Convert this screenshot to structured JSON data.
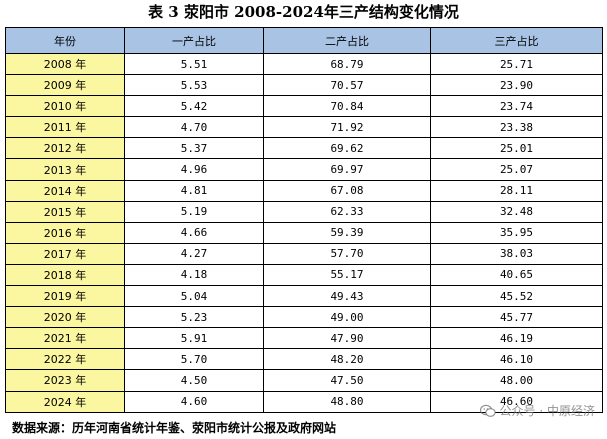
{
  "title": "表 3 荥阳市 2008-2024年三产结构变化情况",
  "table": {
    "headers": [
      "年份",
      "一产占比",
      "二产占比",
      "三产占比"
    ],
    "rows": [
      [
        "2008 年",
        "5.51",
        "68.79",
        "25.71"
      ],
      [
        "2009 年",
        "5.53",
        "70.57",
        "23.90"
      ],
      [
        "2010 年",
        "5.42",
        "70.84",
        "23.74"
      ],
      [
        "2011 年",
        "4.70",
        "71.92",
        "23.38"
      ],
      [
        "2012 年",
        "5.37",
        "69.62",
        "25.01"
      ],
      [
        "2013 年",
        "4.96",
        "69.97",
        "25.07"
      ],
      [
        "2014 年",
        "4.81",
        "67.08",
        "28.11"
      ],
      [
        "2015 年",
        "5.19",
        "62.33",
        "32.48"
      ],
      [
        "2016 年",
        "4.66",
        "59.39",
        "35.95"
      ],
      [
        "2017 年",
        "4.27",
        "57.70",
        "38.03"
      ],
      [
        "2018 年",
        "4.18",
        "55.17",
        "40.65"
      ],
      [
        "2019 年",
        "5.04",
        "49.43",
        "45.52"
      ],
      [
        "2020 年",
        "5.23",
        "49.00",
        "45.77"
      ],
      [
        "2021 年",
        "5.91",
        "47.90",
        "46.19"
      ],
      [
        "2022 年",
        "5.70",
        "48.20",
        "46.10"
      ],
      [
        "2023 年",
        "4.50",
        "47.50",
        "48.00"
      ],
      [
        "2024 年",
        "4.60",
        "48.80",
        "46.60"
      ]
    ]
  },
  "footer": "数据来源：历年河南省统计年鉴、荥阳市统计公报及政府网站",
  "watermark": "公众号 · 中原经济",
  "icons": {
    "watermark_icon": "wechat-icon"
  },
  "colors": {
    "header_bg": "#a9c3e5",
    "year_bg": "#fbf6a0",
    "border": "#000000"
  }
}
